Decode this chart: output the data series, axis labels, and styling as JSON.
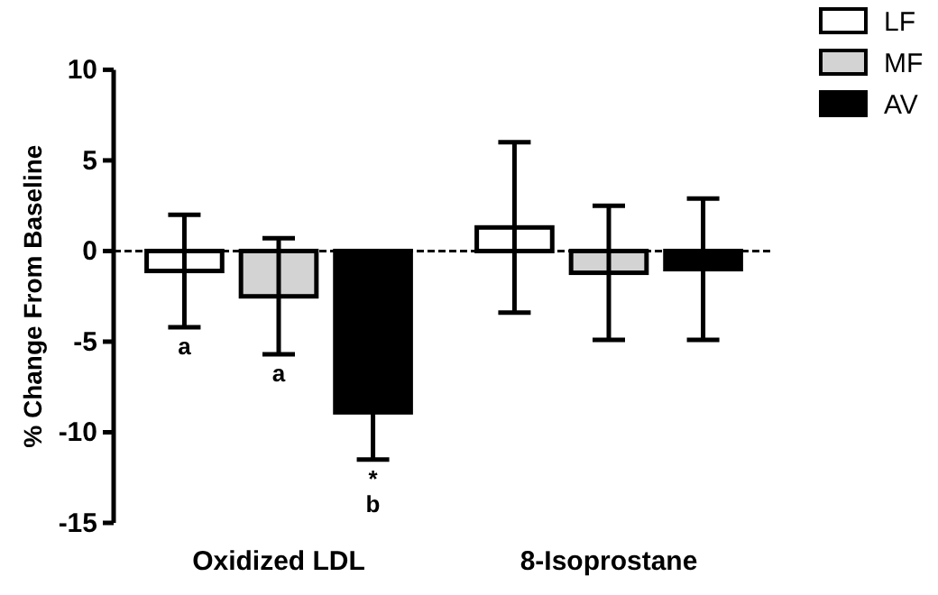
{
  "chart_data": {
    "type": "bar",
    "ylabel": "% Change From Baseline",
    "categories": [
      "Oxidized LDL",
      "8-Isoprostane"
    ],
    "series": [
      {
        "name": "LF",
        "color": "#ffffff",
        "values": [
          -1.1,
          1.3
        ],
        "errors": [
          3.1,
          4.7
        ],
        "value_labels": [
          "a",
          null
        ]
      },
      {
        "name": "MF",
        "color": "#d3d3d3",
        "values": [
          -2.5,
          -1.2
        ],
        "errors": [
          3.2,
          3.7
        ],
        "value_labels": [
          "a",
          null
        ]
      },
      {
        "name": "AV",
        "color": "#000000",
        "values": [
          -8.9,
          -1.0
        ],
        "errors": [
          2.6,
          3.9
        ],
        "value_labels": [
          "*\nb",
          null
        ]
      }
    ],
    "ylim": [
      -15,
      10
    ],
    "yticks": [
      -15,
      -10,
      -5,
      0,
      5,
      10
    ],
    "ref_lines": [
      {
        "axis": "y",
        "value": 0,
        "line_style": "dashed"
      }
    ],
    "legend": "top right",
    "grid": false
  }
}
